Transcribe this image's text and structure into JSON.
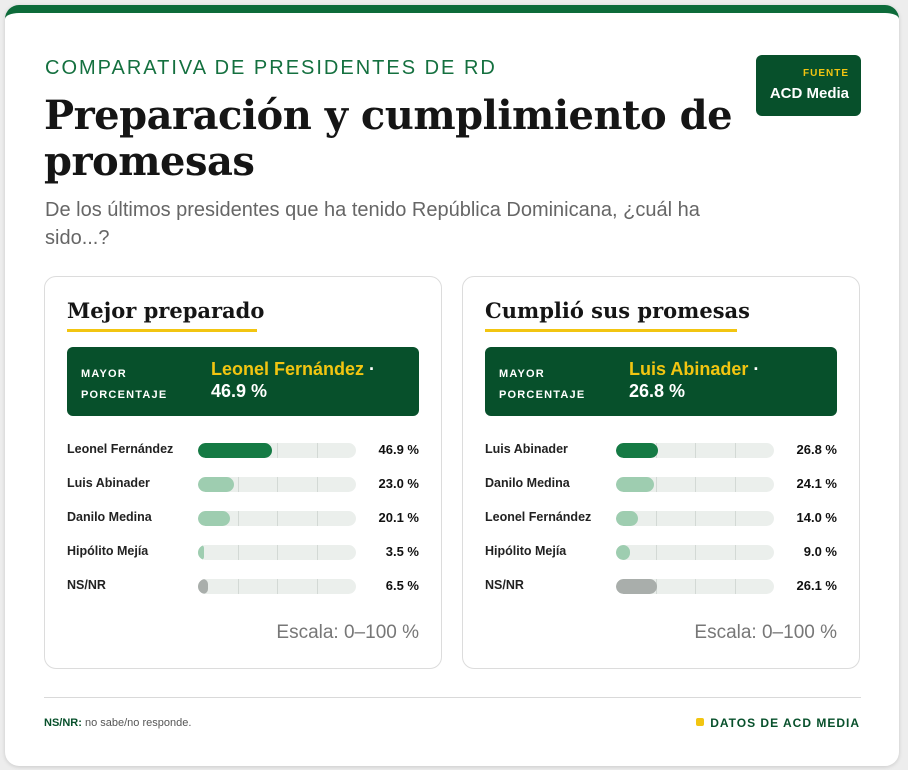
{
  "header": {
    "eyebrow": "COMPARATIVA DE PRESIDENTES DE RD",
    "title": "Preparación y cumplimiento de promesas",
    "subtitle": "De los últimos presidentes que ha tenido República Dominicana, ¿cuál ha sido...?"
  },
  "source": {
    "label": "FUENTE",
    "value": "ACD Media"
  },
  "colors": {
    "brand_green": "#07502b",
    "accent_yellow": "#f2c511",
    "bar_dark": "#157a44",
    "bar_light": "#9ecdb0",
    "bar_gray": "#a9aeab"
  },
  "chart_data": [
    {
      "type": "bar",
      "title": "Mejor preparado",
      "top": {
        "label": "MAYOR PORCENTAJE",
        "name": "Leonel Fernández",
        "value_text": "46.9 %"
      },
      "categories": [
        "Leonel Fernández",
        "Luis Abinader",
        "Danilo Medina",
        "Hipólito Mejía",
        "NS/NR"
      ],
      "values": [
        46.9,
        23.0,
        20.1,
        3.5,
        6.5
      ],
      "labels": [
        "46.9 %",
        "23.0 %",
        "20.1 %",
        "3.5 %",
        "6.5 %"
      ],
      "ylim": [
        0,
        100
      ],
      "scale_text": "Escala: 0–100 %"
    },
    {
      "type": "bar",
      "title": "Cumplió sus promesas",
      "top": {
        "label": "MAYOR PORCENTAJE",
        "name": "Luis Abinader",
        "value_text": "26.8 %"
      },
      "categories": [
        "Luis Abinader",
        "Danilo Medina",
        "Leonel Fernández",
        "Hipólito Mejía",
        "NS/NR"
      ],
      "values": [
        26.8,
        24.1,
        14.0,
        9.0,
        26.1
      ],
      "labels": [
        "26.8 %",
        "24.1 %",
        "14.0 %",
        "9.0 %",
        "26.1 %"
      ],
      "ylim": [
        0,
        100
      ],
      "scale_text": "Escala: 0–100 %"
    }
  ],
  "footer": {
    "note_key": "NS/NR:",
    "note_text": "no sabe/no responde.",
    "credit": "DATOS DE ACD MEDIA"
  }
}
